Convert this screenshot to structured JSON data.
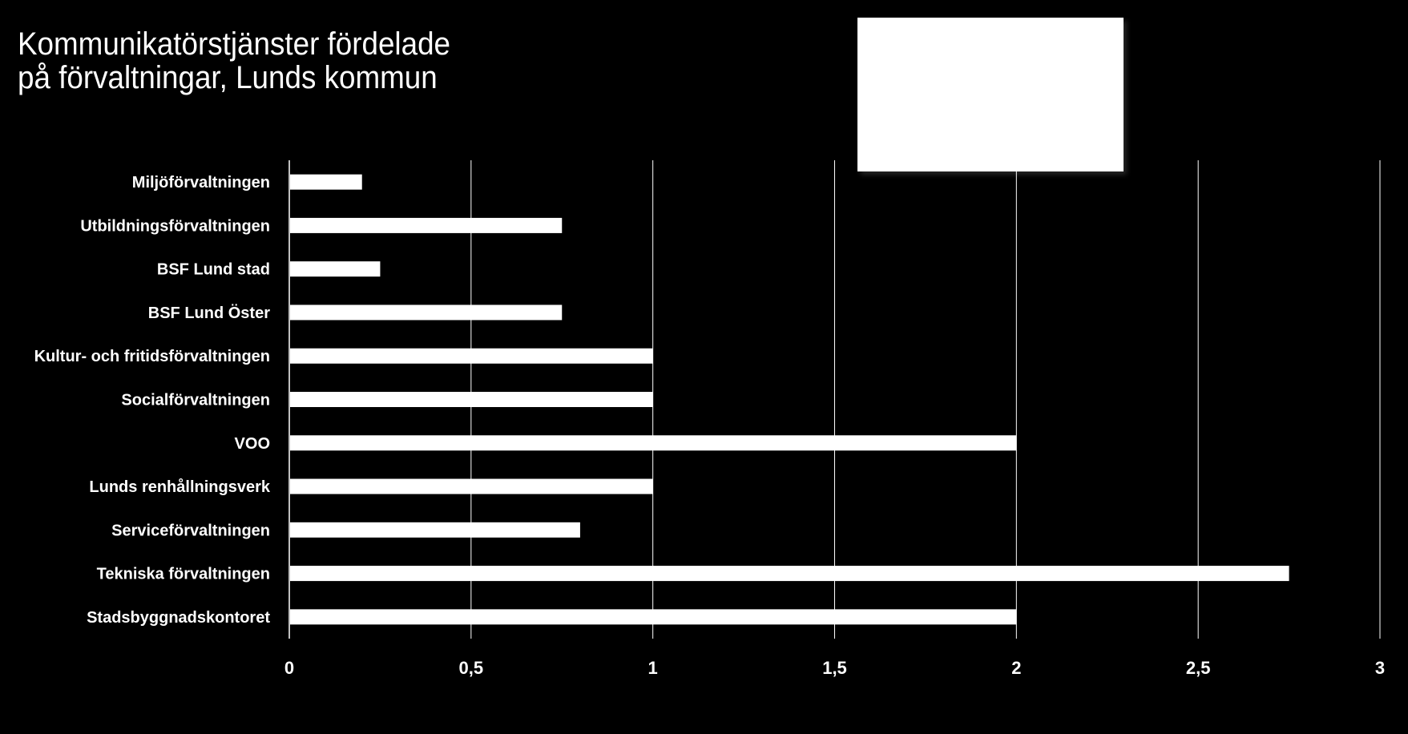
{
  "chart_data": {
    "type": "bar",
    "orientation": "horizontal",
    "title_lines": [
      "Kommunikatörstjänster fördelade",
      "på förvaltningar, Lunds kommun"
    ],
    "categories": [
      "Miljöförvaltningen",
      "Utbildningsförvaltningen",
      "BSF Lund stad",
      "BSF Lund Öster",
      "Kultur- och fritidsförvaltningen",
      "Socialförvaltningen",
      "VOO",
      "Lunds renhållningsverk",
      "Serviceförvaltningen",
      "Tekniska förvaltningen",
      "Stadsbyggnadskontoret"
    ],
    "values": [
      0.2,
      0.75,
      0.25,
      0.75,
      1,
      1,
      2,
      1,
      0.8,
      2.75,
      2
    ],
    "x_ticks": [
      "0",
      "0,5",
      "1",
      "1,5",
      "2",
      "2,5",
      "3"
    ],
    "xlim": [
      0,
      3
    ],
    "grid": "vertical",
    "legend": "top-right (blank white box)",
    "colors": {
      "background": "#000000",
      "bar": "#ffffff",
      "text": "#ffffff",
      "grid": "#ffffff"
    }
  }
}
